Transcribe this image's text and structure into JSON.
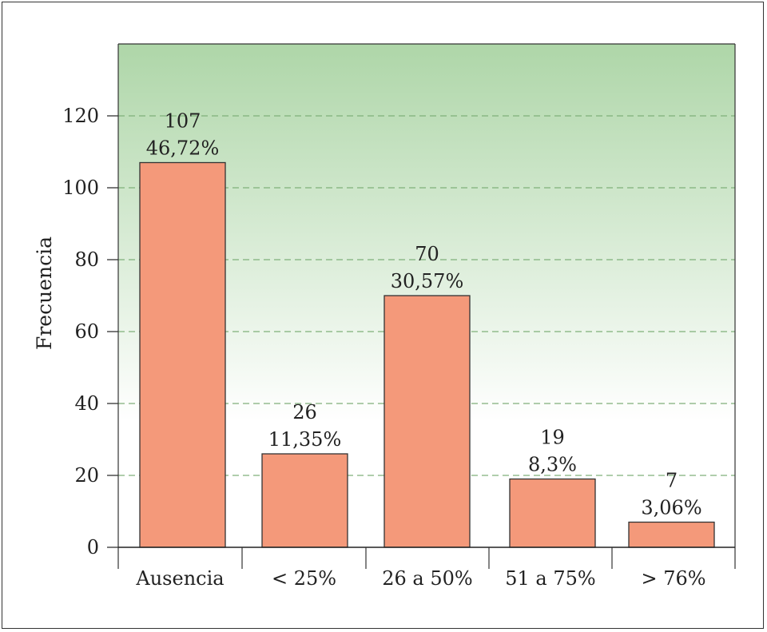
{
  "chart_data": {
    "type": "bar",
    "title": "",
    "xlabel": "",
    "ylabel": "Frecuencia",
    "ylim": [
      0,
      120
    ],
    "yticks": [
      0,
      20,
      40,
      60,
      80,
      100,
      120
    ],
    "grid": true,
    "categories": [
      "Ausencia",
      "< 25%",
      "26 a 50%",
      "51 a 75%",
      "> 76%"
    ],
    "values": [
      107,
      26,
      70,
      19,
      7
    ],
    "count_labels": [
      "107",
      "26",
      "70",
      "19",
      "7"
    ],
    "percent_labels": [
      "46,72%",
      "11,35%",
      "30,57%",
      "8,3%",
      "3,06%"
    ],
    "colors": {
      "bar": "#f4997a",
      "bar_stroke": "#333333",
      "background_top": "#aed6a8",
      "background_bottom": "#ffffff",
      "grid": "#7fb07a"
    }
  }
}
